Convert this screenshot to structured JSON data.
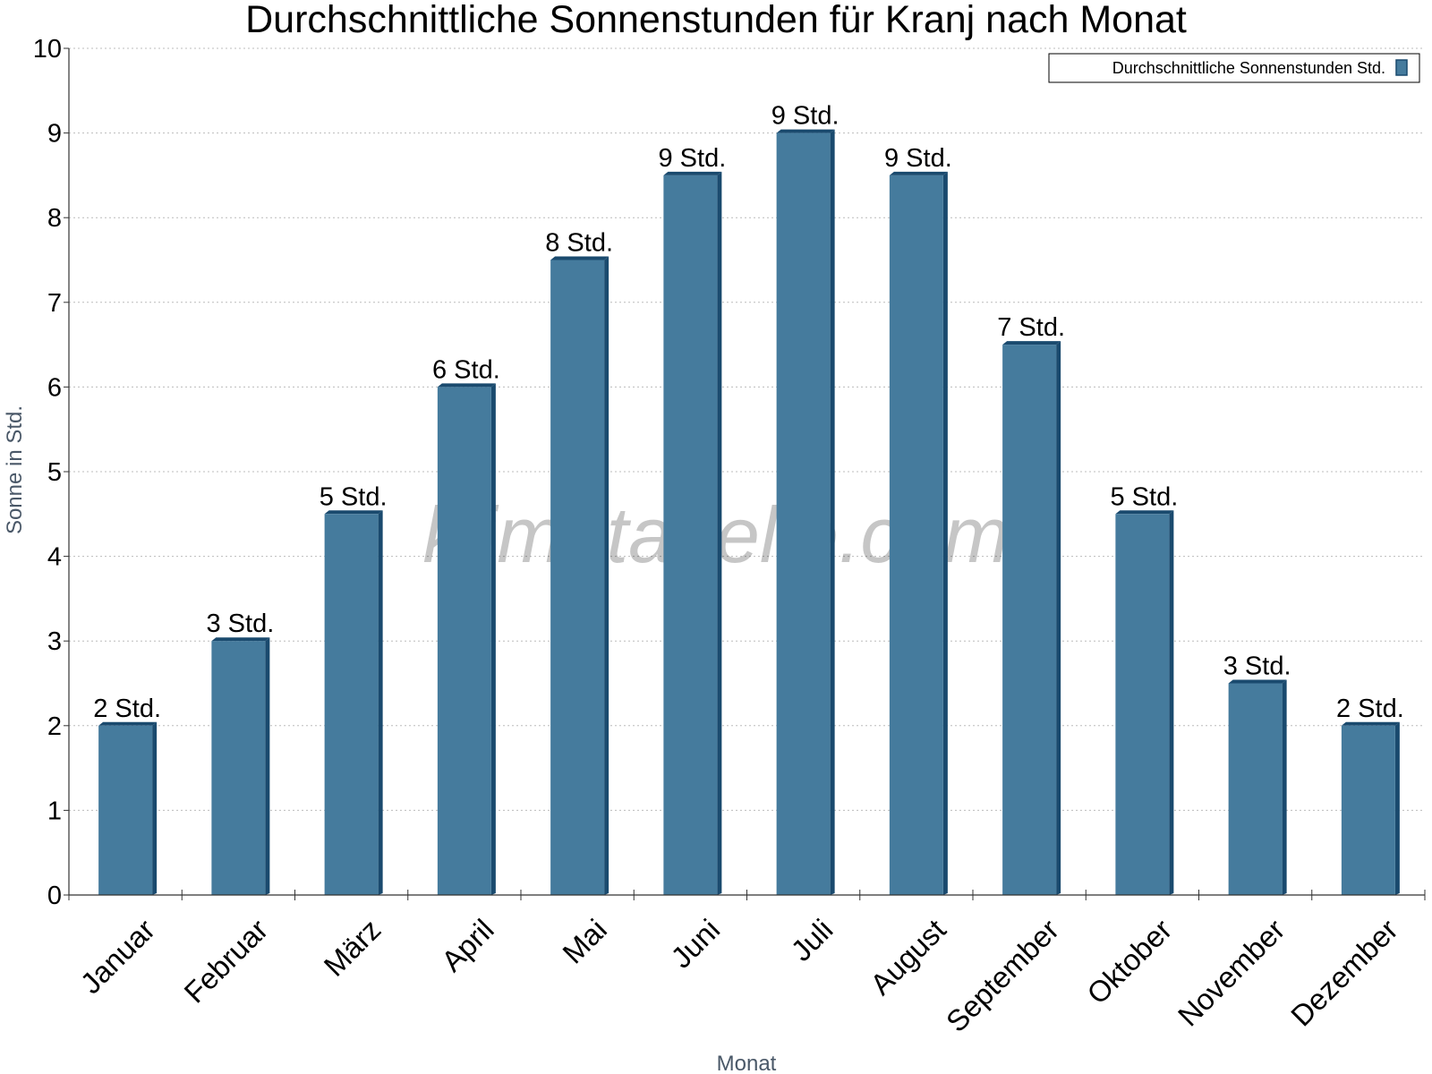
{
  "chart_data": {
    "type": "bar",
    "title": "Durchschnittliche Sonnenstunden für Kranj nach Monat",
    "xlabel": "Monat",
    "ylabel": "Sonne in Std.",
    "categories": [
      "Januar",
      "Februar",
      "März",
      "April",
      "Mai",
      "Juni",
      "Juli",
      "August",
      "September",
      "Oktober",
      "November",
      "Dezember"
    ],
    "series": [
      {
        "name": "Durchschnittliche Sonnenstunden Std.",
        "values": [
          2,
          3,
          4.5,
          6,
          7.5,
          8.5,
          9,
          8.5,
          6.5,
          4.5,
          2.5,
          2
        ],
        "labels": [
          "2 Std.",
          "3 Std.",
          "5 Std.",
          "6 Std.",
          "8 Std.",
          "9 Std.",
          "9 Std.",
          "9 Std.",
          "7 Std.",
          "5 Std.",
          "3 Std.",
          "2 Std."
        ]
      }
    ],
    "ylim": [
      0,
      10
    ],
    "yticks": [
      0,
      1,
      2,
      3,
      4,
      5,
      6,
      7,
      8,
      9,
      10
    ],
    "grid": true,
    "legend_position": "top-right",
    "bar_color": "#457b9d",
    "bar_edge_color": "#1a4a6e",
    "watermark": "klimatabelle.com"
  }
}
